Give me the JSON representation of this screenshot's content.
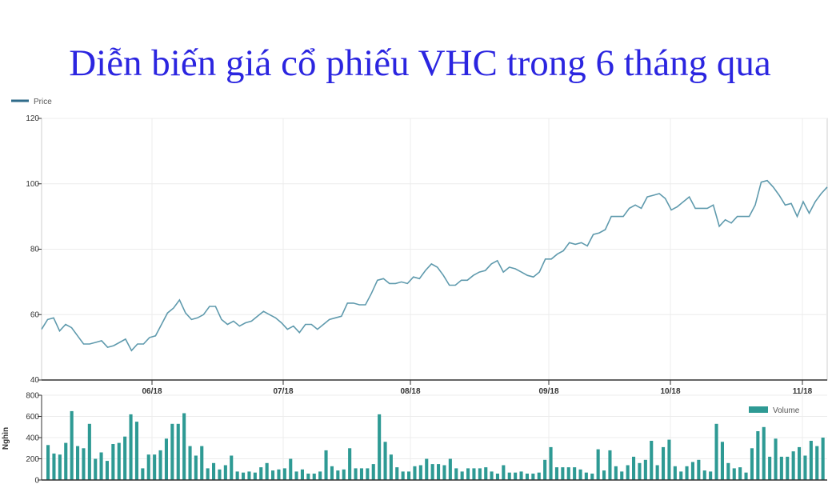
{
  "title": "Diễn biến giá cổ phiếu VHC trong 6 tháng qua",
  "chart_data": [
    {
      "type": "line",
      "legend": "Price",
      "legend_position": "top-left",
      "color": "#5f9aad",
      "ylim": [
        40,
        120
      ],
      "yticks": [
        "40",
        "60",
        "80",
        "100",
        "120"
      ],
      "xticks": [
        "06/18",
        "07/18",
        "08/18",
        "09/18",
        "10/18",
        "11/18"
      ],
      "grid": true,
      "series": [
        {
          "name": "Price",
          "values": [
            55.5,
            58.5,
            59,
            55,
            57,
            56,
            53.5,
            51,
            51,
            51.5,
            52,
            50,
            50.5,
            51.5,
            52.5,
            49,
            51,
            51,
            53,
            53.5,
            57,
            60.5,
            62,
            64.5,
            60.5,
            58.5,
            59,
            60,
            62.5,
            62.5,
            58.5,
            57,
            58,
            56.5,
            57.5,
            58,
            59.5,
            61,
            60,
            59,
            57.5,
            55.5,
            56.5,
            54.5,
            57,
            57,
            55.5,
            57,
            58.5,
            59,
            59.5,
            63.5,
            63.5,
            63,
            63,
            66.5,
            70.5,
            71,
            69.5,
            69.5,
            70,
            69.5,
            71.5,
            71,
            73.5,
            75.5,
            74.5,
            72,
            69,
            69,
            70.5,
            70.5,
            72,
            73,
            73.5,
            75.5,
            76.5,
            73,
            74.5,
            74,
            73,
            72,
            71.5,
            73,
            77,
            77,
            78.5,
            79.5,
            82,
            81.5,
            82,
            81,
            84.5,
            85,
            86,
            90,
            90,
            90,
            92.5,
            93.5,
            92.5,
            96,
            96.5,
            97,
            95.5,
            92,
            93,
            94.5,
            96,
            92.5,
            92.5,
            92.5,
            93.5,
            87,
            89,
            88,
            90,
            90,
            90,
            93.5,
            100.5,
            101,
            99,
            96.5,
            93.5,
            94,
            90,
            94.5,
            91,
            94.5,
            97,
            99
          ]
        }
      ]
    },
    {
      "type": "bar",
      "legend": "Volume",
      "legend_position": "top-right",
      "color": "#2e9a94",
      "ylabel": "Nghìn",
      "ylim": [
        0,
        800
      ],
      "yticks": [
        "0",
        "200",
        "400",
        "600",
        "800"
      ],
      "series": [
        {
          "name": "Volume",
          "values": [
            330,
            250,
            240,
            350,
            650,
            320,
            300,
            530,
            200,
            260,
            180,
            340,
            350,
            410,
            620,
            550,
            110,
            240,
            240,
            280,
            390,
            530,
            530,
            630,
            320,
            230,
            320,
            110,
            160,
            100,
            140,
            230,
            80,
            70,
            80,
            70,
            120,
            160,
            90,
            100,
            110,
            200,
            80,
            100,
            60,
            60,
            80,
            280,
            130,
            90,
            100,
            300,
            110,
            110,
            110,
            150,
            620,
            360,
            240,
            120,
            80,
            80,
            130,
            140,
            200,
            150,
            150,
            140,
            200,
            110,
            80,
            110,
            110,
            110,
            120,
            80,
            60,
            140,
            70,
            70,
            80,
            60,
            60,
            70,
            190,
            310,
            120,
            120,
            120,
            120,
            100,
            70,
            60,
            290,
            90,
            280,
            130,
            80,
            140,
            220,
            160,
            190,
            370,
            140,
            310,
            380,
            130,
            80,
            130,
            170,
            190,
            90,
            80,
            530,
            360,
            160,
            110,
            120,
            70,
            300,
            460,
            500,
            220,
            390,
            220,
            220,
            270,
            310,
            230,
            370,
            320,
            400
          ]
        }
      ]
    }
  ]
}
